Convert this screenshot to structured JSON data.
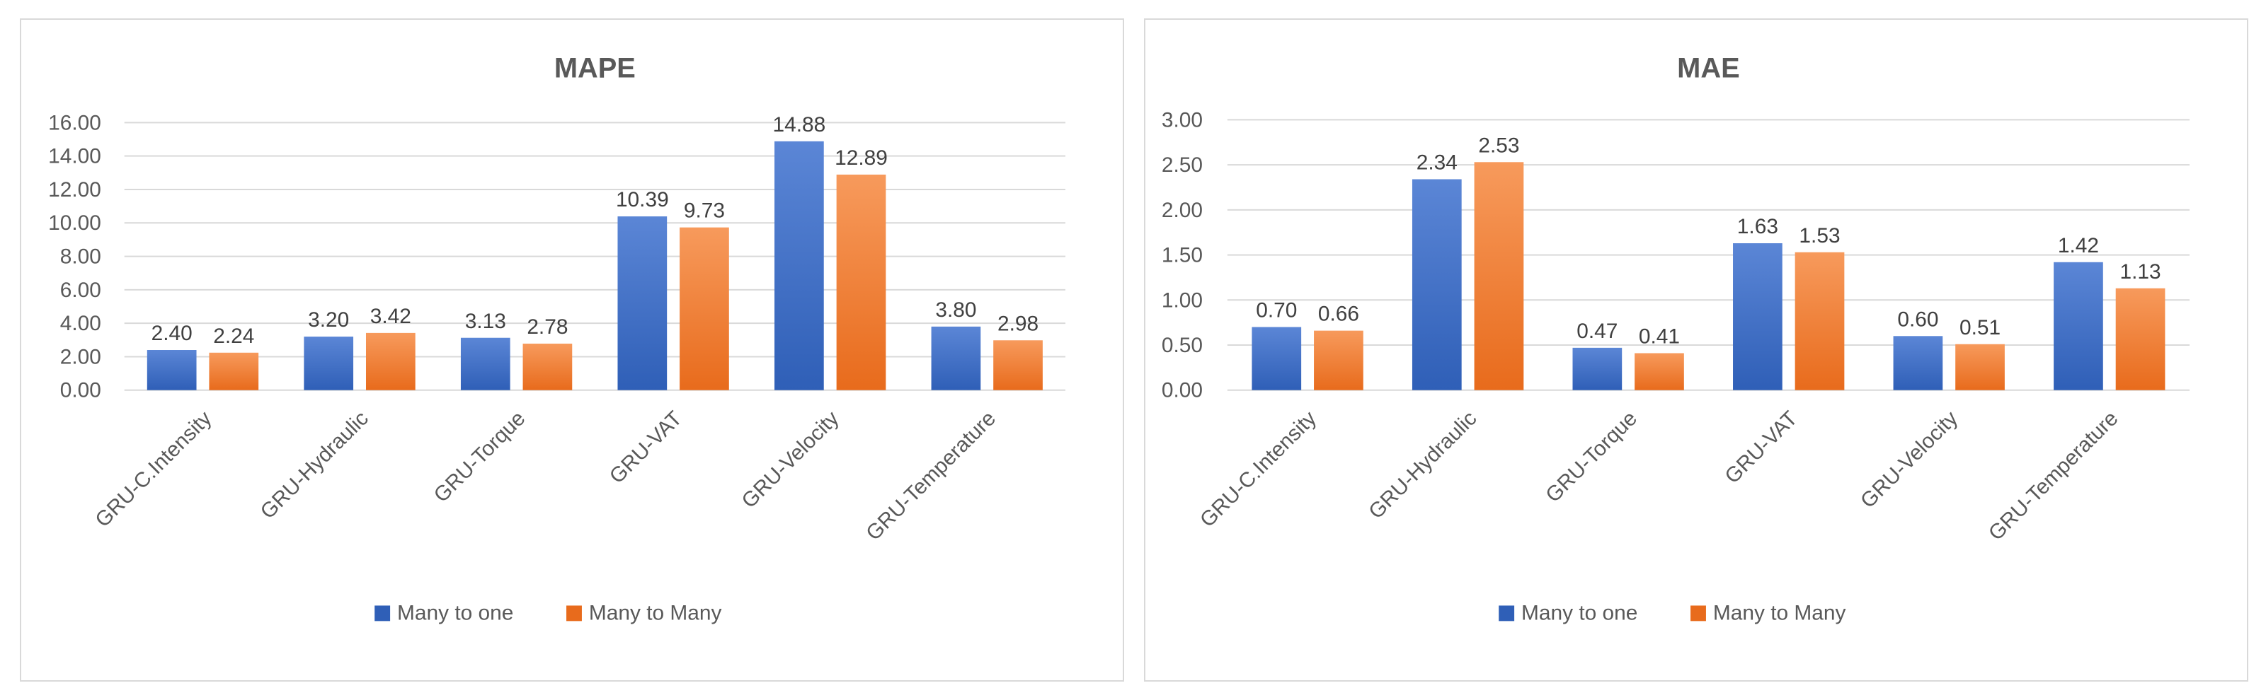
{
  "colors": {
    "many_to_one_top": "#5b86d6",
    "many_to_one_bottom": "#2f5fb7",
    "many_to_many_top": "#f79a5c",
    "many_to_many_bottom": "#e86b1c"
  },
  "chart_data": [
    {
      "type": "bar",
      "title": "MAPE",
      "categories": [
        "GRU-C.Intensity",
        "GRU-Hydraulic",
        "GRU-Torque",
        "GRU-VAT",
        "GRU-Velocity",
        "GRU-Temperature"
      ],
      "series": [
        {
          "name": "Many to one",
          "values": [
            2.4,
            3.2,
            3.13,
            10.39,
            14.88,
            3.8
          ]
        },
        {
          "name": "Many to Many",
          "values": [
            2.24,
            3.42,
            2.78,
            9.73,
            12.89,
            2.98
          ]
        }
      ],
      "value_labels": [
        [
          "2.40",
          "3.20",
          "3.13",
          "10.39",
          "14.88",
          "3.80"
        ],
        [
          "2.24",
          "3.42",
          "2.78",
          "9.73",
          "12.89",
          "2.98"
        ]
      ],
      "ylim": [
        0,
        16
      ],
      "yticks": [
        "0.00",
        "2.00",
        "4.00",
        "6.00",
        "8.00",
        "10.00",
        "12.00",
        "14.00",
        "16.00"
      ],
      "grid": true,
      "legend": "bottom-center"
    },
    {
      "type": "bar",
      "title": "MAE",
      "categories": [
        "GRU-C.Intensity",
        "GRU-Hydraulic",
        "GRU-Torque",
        "GRU-VAT",
        "GRU-Velocity",
        "GRU-Temperature"
      ],
      "series": [
        {
          "name": "Many to one",
          "values": [
            0.7,
            2.34,
            0.47,
            1.63,
            0.6,
            1.42
          ]
        },
        {
          "name": "Many to Many",
          "values": [
            0.66,
            2.53,
            0.41,
            1.53,
            0.51,
            1.13
          ]
        }
      ],
      "value_labels": [
        [
          "0.70",
          "2.34",
          "0.47",
          "1.63",
          "0.60",
          "1.42"
        ],
        [
          "0.66",
          "2.53",
          "0.41",
          "1.53",
          "0.51",
          "1.13"
        ]
      ],
      "ylim": [
        0,
        3
      ],
      "yticks": [
        "0.00",
        "0.50",
        "1.00",
        "1.50",
        "2.00",
        "2.50",
        "3.00"
      ],
      "grid": true,
      "legend": "bottom-center"
    }
  ]
}
